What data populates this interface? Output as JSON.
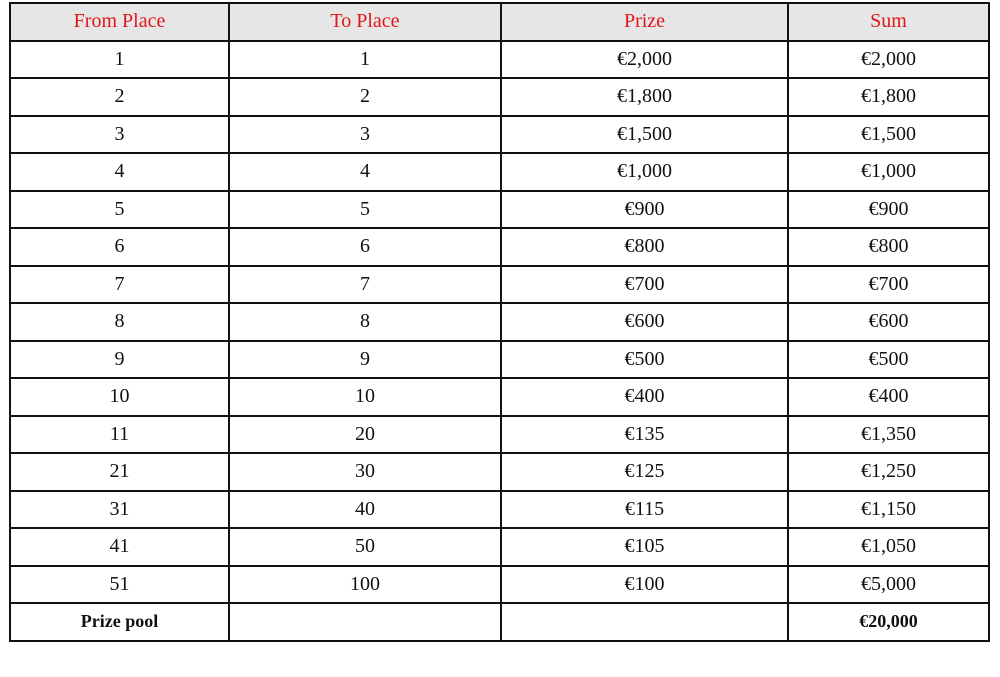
{
  "headers": [
    "From Place",
    "To Place",
    "Prize",
    "Sum"
  ],
  "rows": [
    [
      "1",
      "1",
      "€2,000",
      "€2,000"
    ],
    [
      "2",
      "2",
      "€1,800",
      "€1,800"
    ],
    [
      "3",
      "3",
      "€1,500",
      "€1,500"
    ],
    [
      "4",
      "4",
      "€1,000",
      "€1,000"
    ],
    [
      "5",
      "5",
      "€900",
      "€900"
    ],
    [
      "6",
      "6",
      "€800",
      "€800"
    ],
    [
      "7",
      "7",
      "€700",
      "€700"
    ],
    [
      "8",
      "8",
      "€600",
      "€600"
    ],
    [
      "9",
      "9",
      "€500",
      "€500"
    ],
    [
      "10",
      "10",
      "€400",
      "€400"
    ],
    [
      "11",
      "20",
      "€135",
      "€1,350"
    ],
    [
      "21",
      "30",
      "€125",
      "€1,250"
    ],
    [
      "31",
      "40",
      "€115",
      "€1,150"
    ],
    [
      "41",
      "50",
      "€105",
      "€1,050"
    ],
    [
      "51",
      "100",
      "€100",
      "€5,000"
    ]
  ],
  "total": {
    "label": "Prize pool",
    "sum": "€20,000"
  },
  "colors": {
    "header_text": "#e0161b",
    "header_bg": "#e6e6e6"
  }
}
